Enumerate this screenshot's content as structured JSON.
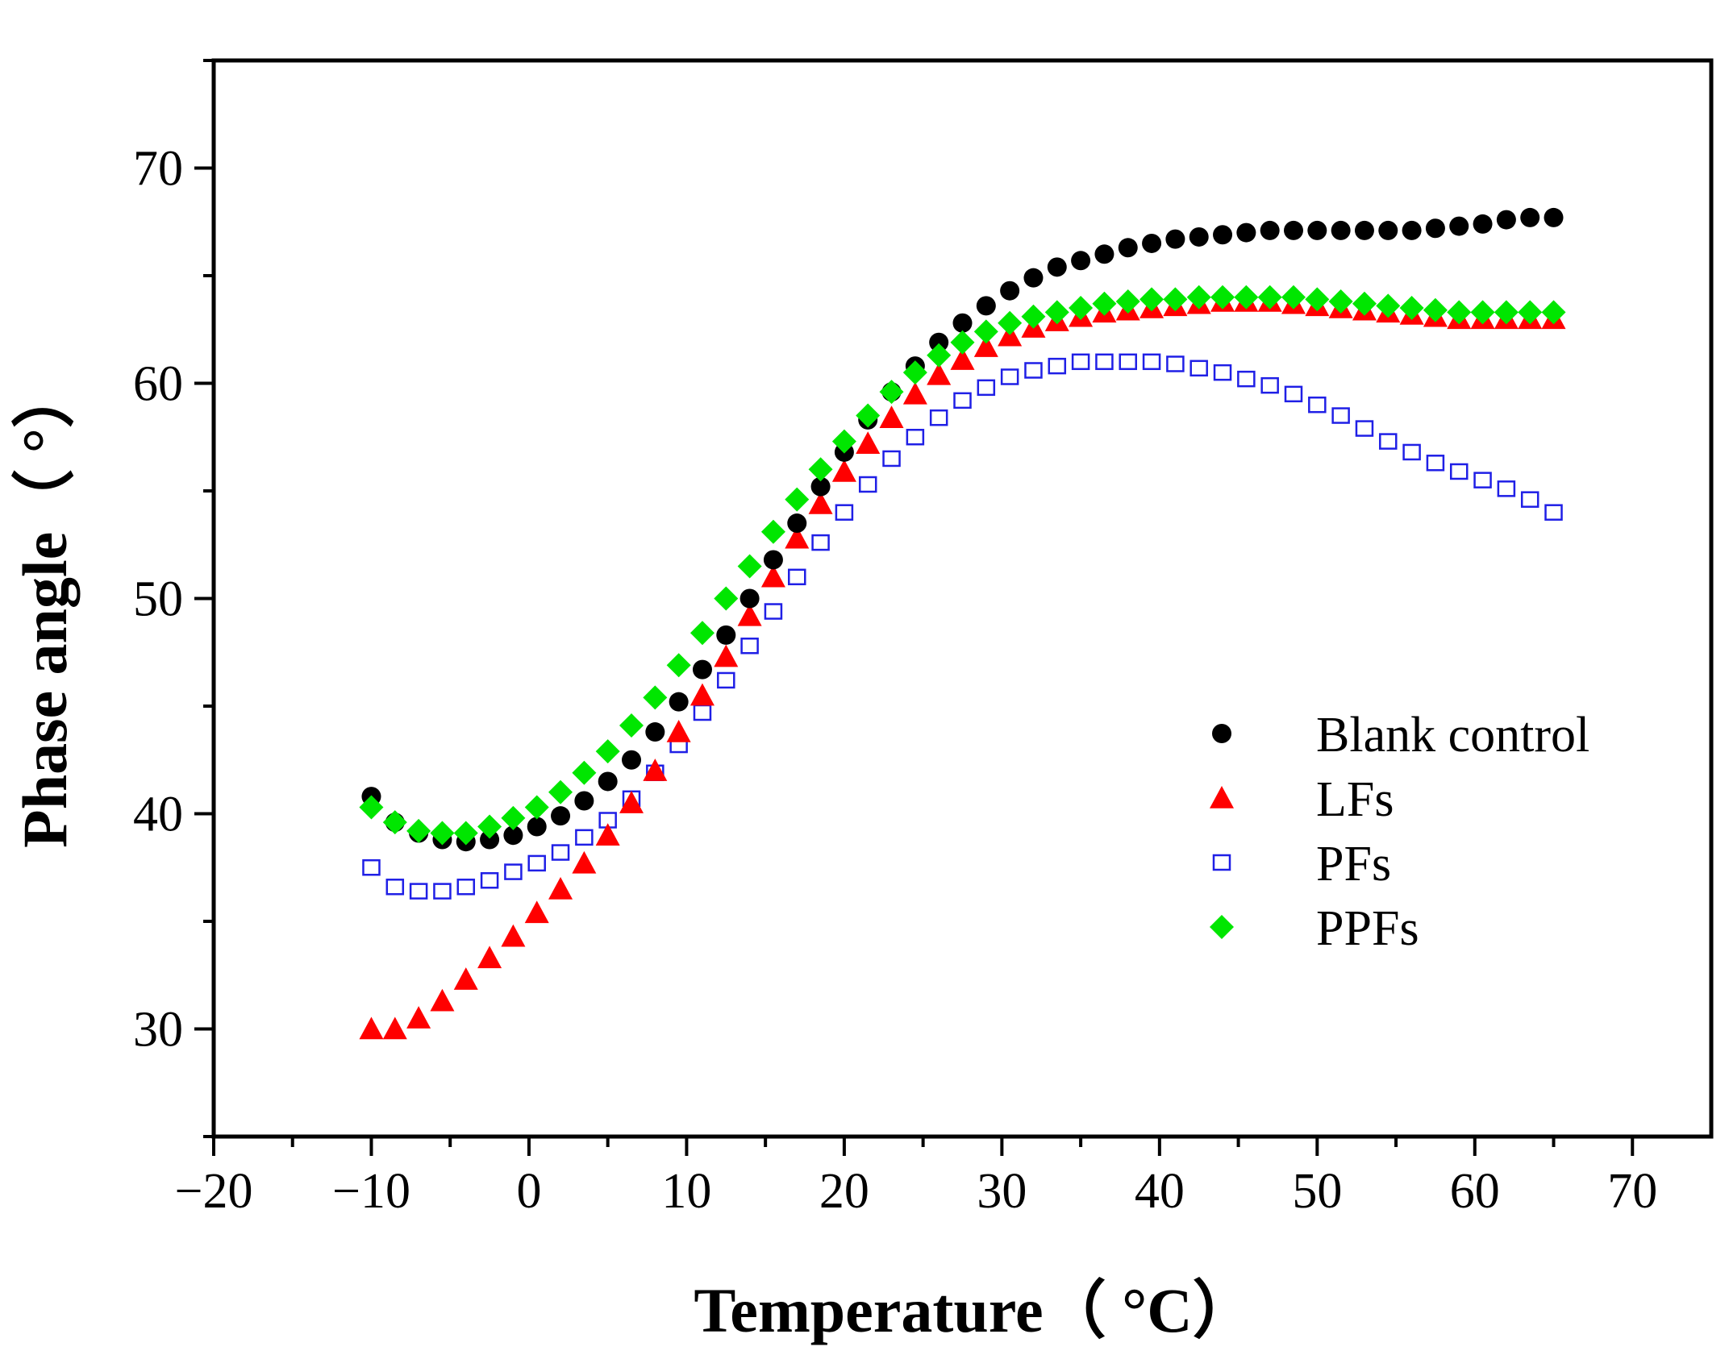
{
  "chart_data": {
    "type": "scatter",
    "title": "",
    "xlabel": "Temperature（ °C）",
    "ylabel": "Phase angle（ °）",
    "xlim": [
      -20,
      75
    ],
    "ylim": [
      25,
      75
    ],
    "xticks": [
      -20,
      -10,
      0,
      10,
      20,
      30,
      40,
      50,
      60,
      70
    ],
    "xtick_labels": [
      "−20",
      "−10",
      "0",
      "10",
      "20",
      "30",
      "40",
      "50",
      "60",
      "70"
    ],
    "yticks": [
      30,
      40,
      50,
      60,
      70
    ],
    "ytick_labels": [
      "30",
      "40",
      "50",
      "60",
      "70"
    ],
    "grid": false,
    "legend_position": "middle-right",
    "x": [
      -10,
      -8.5,
      -7,
      -5.5,
      -4,
      -2.5,
      -1,
      0.5,
      2,
      3.5,
      5,
      6.5,
      8,
      9.5,
      11,
      12.5,
      14,
      15.5,
      17,
      18.5,
      20,
      21.5,
      23,
      24.5,
      26,
      27.5,
      29,
      30.5,
      32,
      33.5,
      35,
      36.5,
      38,
      39.5,
      41,
      42.5,
      44,
      45.5,
      47,
      48.5,
      50,
      51.5,
      53,
      54.5,
      56,
      57.5,
      59,
      60.5,
      62,
      63.5,
      65
    ],
    "series": [
      {
        "name": "Blank control",
        "marker": "circle",
        "color": "#000000",
        "values": [
          40.8,
          39.6,
          39.1,
          38.8,
          38.7,
          38.8,
          39.0,
          39.4,
          39.9,
          40.6,
          41.5,
          42.5,
          43.8,
          45.2,
          46.7,
          48.3,
          50.0,
          51.8,
          53.5,
          55.2,
          56.8,
          58.3,
          59.6,
          60.8,
          61.9,
          62.8,
          63.6,
          64.3,
          64.9,
          65.4,
          65.7,
          66.0,
          66.3,
          66.5,
          66.7,
          66.8,
          66.9,
          67.0,
          67.1,
          67.1,
          67.1,
          67.1,
          67.1,
          67.1,
          67.1,
          67.2,
          67.3,
          67.4,
          67.6,
          67.7,
          67.7
        ]
      },
      {
        "name": "LFs",
        "marker": "triangle",
        "color": "#ff0000",
        "values": [
          30.0,
          30.0,
          30.5,
          31.3,
          32.3,
          33.3,
          34.3,
          35.4,
          36.5,
          37.7,
          39.0,
          40.5,
          42.0,
          43.8,
          45.5,
          47.3,
          49.2,
          51.0,
          52.8,
          54.4,
          55.9,
          57.2,
          58.4,
          59.5,
          60.4,
          61.1,
          61.7,
          62.2,
          62.6,
          62.9,
          63.1,
          63.3,
          63.4,
          63.5,
          63.6,
          63.7,
          63.8,
          63.8,
          63.8,
          63.7,
          63.6,
          63.5,
          63.4,
          63.3,
          63.2,
          63.1,
          63.0,
          63.0,
          63.0,
          63.0,
          63.0
        ]
      },
      {
        "name": "PFs",
        "marker": "open-square",
        "color": "#1f1fe6",
        "values": [
          37.5,
          36.6,
          36.4,
          36.4,
          36.6,
          36.9,
          37.3,
          37.7,
          38.2,
          38.9,
          39.7,
          40.7,
          41.9,
          43.2,
          44.7,
          46.2,
          47.8,
          49.4,
          51.0,
          52.6,
          54.0,
          55.3,
          56.5,
          57.5,
          58.4,
          59.2,
          59.8,
          60.3,
          60.6,
          60.8,
          61.0,
          61.0,
          61.0,
          61.0,
          60.9,
          60.7,
          60.5,
          60.2,
          59.9,
          59.5,
          59.0,
          58.5,
          57.9,
          57.3,
          56.8,
          56.3,
          55.9,
          55.5,
          55.1,
          54.6,
          54.0
        ]
      },
      {
        "name": "PPFs",
        "marker": "diamond",
        "color": "#00e600",
        "values": [
          40.3,
          39.6,
          39.2,
          39.1,
          39.1,
          39.4,
          39.8,
          40.3,
          41.0,
          41.9,
          42.9,
          44.1,
          45.4,
          46.9,
          48.4,
          50.0,
          51.5,
          53.1,
          54.6,
          56.0,
          57.3,
          58.5,
          59.6,
          60.5,
          61.3,
          61.9,
          62.4,
          62.8,
          63.1,
          63.3,
          63.5,
          63.7,
          63.8,
          63.9,
          63.9,
          64.0,
          64.0,
          64.0,
          64.0,
          64.0,
          63.9,
          63.8,
          63.7,
          63.6,
          63.5,
          63.4,
          63.3,
          63.3,
          63.3,
          63.3,
          63.3
        ]
      }
    ]
  }
}
